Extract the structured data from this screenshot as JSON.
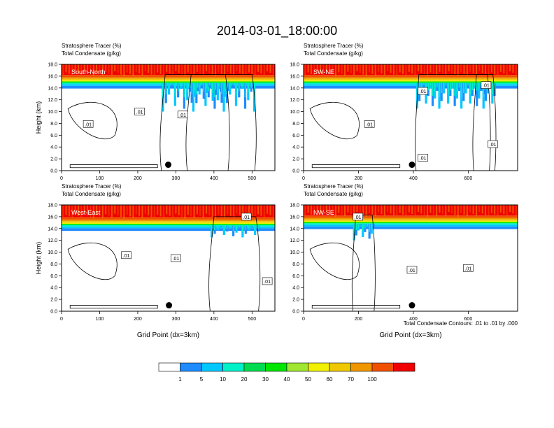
{
  "figure": {
    "title": "2014-03-01_18:00:00",
    "footnote": "Total Condensate Contours: .01 to .01 by .000"
  },
  "colorbar": {
    "levels": [
      "1",
      "5",
      "10",
      "20",
      "30",
      "40",
      "50",
      "60",
      "70",
      "100"
    ],
    "colors": [
      "#ffffff",
      "#1e8cff",
      "#00c8ff",
      "#00f0c8",
      "#00dc50",
      "#00e600",
      "#a0e632",
      "#f0f000",
      "#f0c800",
      "#f09600",
      "#f05000",
      "#f00000"
    ]
  },
  "chart_data": [
    {
      "type": "heatmap",
      "label": "South-North",
      "title_lines": [
        "Stratosphere Tracer   (%)",
        "Total Condensate   (g/kg)"
      ],
      "ylabel": "Height (km)",
      "xlabel": "",
      "xlim": [
        0,
        560
      ],
      "ylim": [
        0,
        18
      ],
      "xticks": [
        0,
        100,
        200,
        300,
        400,
        500
      ],
      "yticks": [
        "0.0",
        "2.0",
        "4.0",
        "6.0",
        "8.0",
        "10.0",
        "12.0",
        "14.0",
        "16.0",
        "18.0"
      ],
      "tracer_base_km": 14.8,
      "plumes": [
        [
          262,
          510,
          10.0
        ],
        [
          330,
          440,
          11.5
        ]
      ],
      "contour_labels": [
        {
          "text": ".01",
          "x": 70,
          "y": 7.9
        },
        {
          "text": ".01",
          "x": 205,
          "y": 10.0
        },
        {
          "text": ".01",
          "x": 318,
          "y": 9.5
        }
      ],
      "marker": {
        "x": 280,
        "y": 1.0
      }
    },
    {
      "type": "heatmap",
      "label": "SW-NE",
      "title_lines": [
        "Stratosphere Tracer   (%)",
        "Total Condensate   (g/kg)"
      ],
      "ylabel": "",
      "xlabel": "",
      "xlim": [
        0,
        780
      ],
      "ylim": [
        0,
        18
      ],
      "xticks": [
        0,
        200,
        400,
        600
      ],
      "yticks": [
        "0.0",
        "2.0",
        "4.0",
        "6.0",
        "8.0",
        "10.0",
        "12.0",
        "14.0",
        "16.0",
        "18.0"
      ],
      "tracer_base_km": 14.8,
      "plumes": [
        [
          410,
          700,
          10.5
        ],
        [
          620,
          680,
          12.5
        ]
      ],
      "contour_labels": [
        {
          "text": ".01",
          "x": 240,
          "y": 7.9
        },
        {
          "text": ".01",
          "x": 435,
          "y": 13.5
        },
        {
          "text": ".01",
          "x": 665,
          "y": 14.5
        },
        {
          "text": ".01",
          "x": 435,
          "y": 2.2
        },
        {
          "text": ".01",
          "x": 690,
          "y": 4.5
        }
      ],
      "marker": {
        "x": 395,
        "y": 1.0
      }
    },
    {
      "type": "heatmap",
      "label": "West-East",
      "title_lines": [
        "Stratosphere Tracer   (%)",
        "Total Condensate   (g/kg)"
      ],
      "ylabel": "Height (km)",
      "xlabel": "Grid Point (dx=3km)",
      "xlim": [
        0,
        560
      ],
      "ylim": [
        0,
        18
      ],
      "xticks": [
        0,
        100,
        200,
        300,
        400,
        500
      ],
      "yticks": [
        "0.0",
        "2.0",
        "4.0",
        "6.0",
        "8.0",
        "10.0",
        "12.0",
        "14.0",
        "16.0",
        "18.0"
      ],
      "tracer_base_km": 14.5,
      "plumes": [
        [
          390,
          520,
          12.5
        ]
      ],
      "contour_labels": [
        {
          "text": ".01",
          "x": 170,
          "y": 9.5
        },
        {
          "text": ".01",
          "x": 300,
          "y": 9.0
        },
        {
          "text": ".01",
          "x": 540,
          "y": 5.1
        },
        {
          "text": ".01",
          "x": 485,
          "y": 16.0
        }
      ],
      "marker": {
        "x": 282,
        "y": 1.0
      }
    },
    {
      "type": "heatmap",
      "label": "NW-SE",
      "title_lines": [
        "Stratosphere Tracer   (%)",
        "Total Condensate   (g/kg)"
      ],
      "ylabel": "",
      "xlabel": "Grid Point (dx=3km)",
      "xlim": [
        0,
        780
      ],
      "ylim": [
        0,
        18
      ],
      "xticks": [
        0,
        200,
        400,
        600
      ],
      "yticks": [
        "0.0",
        "2.0",
        "4.0",
        "6.0",
        "8.0",
        "10.0",
        "12.0",
        "14.0",
        "16.0",
        "18.0"
      ],
      "tracer_base_km": 14.8,
      "plumes": [
        [
          180,
          260,
          12.0
        ]
      ],
      "contour_labels": [
        {
          "text": ".01",
          "x": 198,
          "y": 16.0
        },
        {
          "text": ".01",
          "x": 395,
          "y": 7.0
        },
        {
          "text": ".01",
          "x": 600,
          "y": 7.3
        }
      ],
      "marker": {
        "x": 395,
        "y": 1.0
      }
    }
  ]
}
